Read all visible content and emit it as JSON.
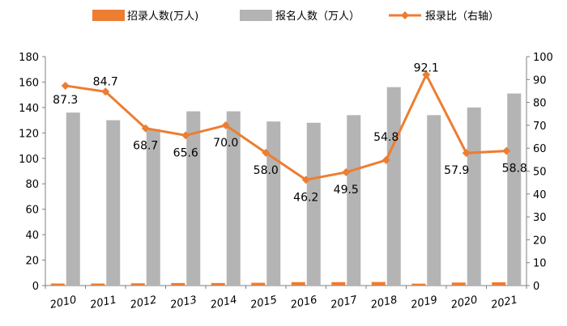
{
  "chart_data": {
    "type": "bar+line",
    "categories": [
      "2010",
      "2011",
      "2012",
      "2013",
      "2014",
      "2015",
      "2016",
      "2017",
      "2018",
      "2019",
      "2020",
      "2021"
    ],
    "series": [
      {
        "name": "招录人数(万人)",
        "type": "bar",
        "axis": "left",
        "color": "#ED7D31",
        "values": [
          1.6,
          1.6,
          1.8,
          2.0,
          2.0,
          2.2,
          2.7,
          2.7,
          2.8,
          1.5,
          2.4,
          2.6
        ]
      },
      {
        "name": "报名人数（万人）",
        "type": "bar",
        "axis": "left",
        "color": "#B4B4B4",
        "values": [
          136,
          130,
          123,
          137,
          137,
          129,
          128,
          134,
          156,
          134,
          140,
          151
        ]
      },
      {
        "name": "报录比（右轴）",
        "type": "line",
        "axis": "right",
        "color": "#ED7D31",
        "values": [
          87.3,
          84.7,
          68.7,
          65.6,
          70.0,
          58.0,
          46.2,
          49.5,
          54.8,
          92.1,
          57.9,
          58.8
        ],
        "labels": [
          "87.3",
          "84.7",
          "68.7",
          "65.6",
          "70.0",
          "58.0",
          "46.2",
          "49.5",
          "54.8",
          "92.1",
          "57.9",
          "58.8"
        ]
      }
    ],
    "y_left": {
      "ylim": [
        0,
        180
      ],
      "ticks": [
        "0",
        "20",
        "40",
        "60",
        "80",
        "100",
        "120",
        "140",
        "160",
        "180"
      ]
    },
    "y_right": {
      "ylim": [
        0,
        100
      ],
      "ticks": [
        "0",
        "10",
        "20",
        "30",
        "40",
        "50",
        "60",
        "70",
        "80",
        "90",
        "100"
      ]
    },
    "legend_position": "top",
    "grid": false
  }
}
